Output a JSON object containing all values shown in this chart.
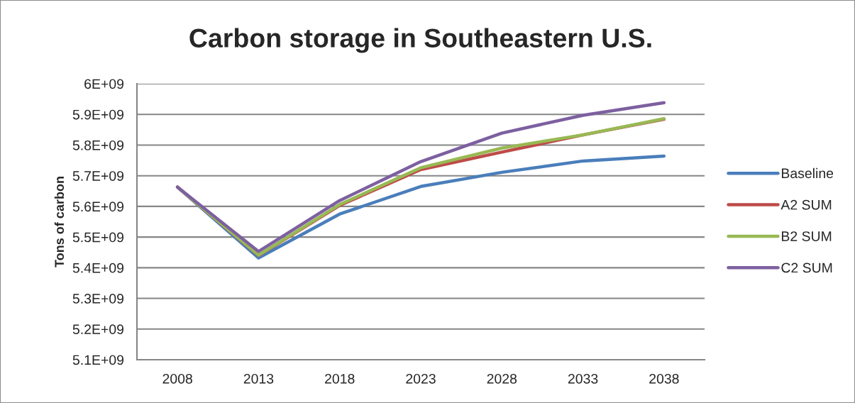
{
  "chart_data": {
    "type": "line",
    "title": "Carbon storage in Southeastern U.S.",
    "ylabel": "Tons of carbon",
    "categories": [
      "2008",
      "2013",
      "2018",
      "2023",
      "2028",
      "2033",
      "2038"
    ],
    "series": [
      {
        "name": "Baseline",
        "color": "#4a7ebb",
        "values": [
          5663000000,
          5432000000,
          5575000000,
          5665000000,
          5711000000,
          5748000000,
          5764000000
        ]
      },
      {
        "name": "A2 SUM",
        "color": "#be4b48",
        "values": [
          5663000000,
          5440000000,
          5603000000,
          5720000000,
          5777000000,
          5833000000,
          5884000000
        ]
      },
      {
        "name": "B2 SUM",
        "color": "#98b954",
        "values": [
          5663000000,
          5441000000,
          5606000000,
          5726000000,
          5790000000,
          5833000000,
          5886000000
        ]
      },
      {
        "name": "C2 SUM",
        "color": "#7d60a0",
        "values": [
          5663000000,
          5453000000,
          5619000000,
          5746000000,
          5839000000,
          5897000000,
          5938000000
        ]
      }
    ],
    "ylim": [
      5100000000,
      6000000000
    ],
    "yticks": [
      {
        "value": 5100000000,
        "label": "5.1E+09"
      },
      {
        "value": 5200000000,
        "label": "5.2E+09"
      },
      {
        "value": 5300000000,
        "label": "5.3E+09"
      },
      {
        "value": 5400000000,
        "label": "5.4E+09"
      },
      {
        "value": 5500000000,
        "label": "5.5E+09"
      },
      {
        "value": 5600000000,
        "label": "5.6E+09"
      },
      {
        "value": 5700000000,
        "label": "5.7E+09"
      },
      {
        "value": 5800000000,
        "label": "5.8E+09"
      },
      {
        "value": 5900000000,
        "label": "5.9E+09"
      },
      {
        "value": 6000000000,
        "label": "6E+09"
      }
    ],
    "grid": "y",
    "legend": "right"
  }
}
